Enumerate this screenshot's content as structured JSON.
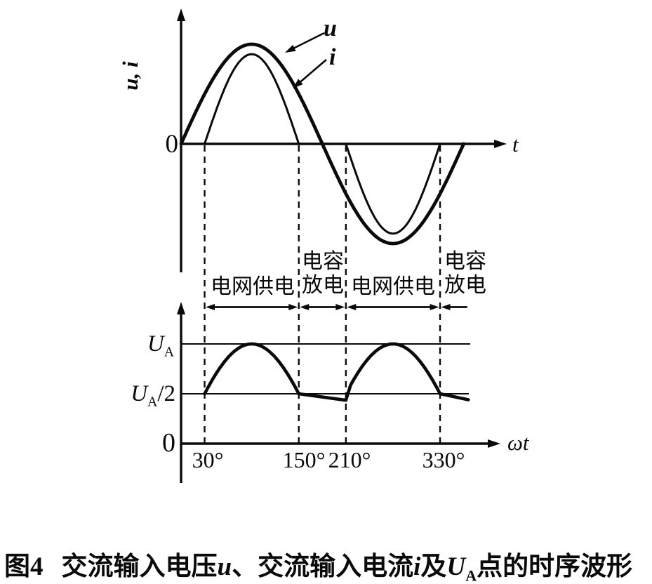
{
  "figure_caption": {
    "fig_label": "图4",
    "voltage_text": "交流输入电压",
    "voltage_symbol": "u",
    "current_text": "、交流输入电流",
    "current_symbol": "i",
    "and_text": "及",
    "node_symbol_main": "U",
    "node_symbol_sub": "A",
    "tail_text": "点的时序波形"
  },
  "top_chart": {
    "y_axis_label": "u, i",
    "origin_label": "0",
    "x_axis_label": "t",
    "curve_u_label": "u",
    "curve_i_label": "i"
  },
  "power_regions": [
    {
      "lines": [
        "电网供电"
      ],
      "from_deg": 30,
      "to_deg": 150,
      "arrow_heads": "both"
    },
    {
      "lines": [
        "电容",
        "放电"
      ],
      "from_deg": 150,
      "to_deg": 210,
      "arrow_heads": "both"
    },
    {
      "lines": [
        "电网供电"
      ],
      "from_deg": 210,
      "to_deg": 330,
      "arrow_heads": "both"
    },
    {
      "lines": [
        "电容",
        "放电"
      ],
      "from_deg": 330,
      "to_deg": 366,
      "arrow_heads": "left"
    }
  ],
  "bottom_chart": {
    "origin_label": "0",
    "x_axis_label_omega": "ω",
    "x_axis_label_t": "t",
    "ua_main": "U",
    "ua_sub": "A",
    "ua2_main": "U",
    "ua2_sub": "A",
    "ua2_suffix": "/2"
  },
  "chart_data": [
    {
      "type": "line",
      "title": "AC input voltage u and AC input current i vs time",
      "xlabel": "t",
      "ylabel": "u, i",
      "x_domain_deg": [
        0,
        360
      ],
      "guides_deg": [
        30,
        150,
        210,
        330
      ],
      "series": [
        {
          "name": "u",
          "model": "sine",
          "amplitude": 1.0,
          "range_deg": [
            0,
            360
          ]
        },
        {
          "name": "i",
          "model": "half-sine-pulses",
          "amplitude": 0.9,
          "pulses": [
            {
              "range_deg": [
                30,
                150
              ],
              "sign": 1
            },
            {
              "range_deg": [
                210,
                330
              ],
              "sign": -1
            }
          ],
          "zero_ranges_deg": [
            [
              0,
              30
            ],
            [
              150,
              210
            ],
            [
              330,
              360
            ]
          ]
        }
      ]
    },
    {
      "type": "line",
      "title": "Voltage at node A (UA) vs ωt",
      "xlabel": "ωt",
      "x_ticks_deg": [
        30,
        150,
        210,
        330
      ],
      "x_tick_labels": [
        "30°",
        "150°",
        "210°",
        "330°"
      ],
      "y_levels": [
        {
          "label": "UA",
          "value": 1.0
        },
        {
          "label": "UA/2",
          "value": 0.5
        }
      ],
      "segments": [
        {
          "model": "rectified-sine",
          "range_deg": [
            30,
            150
          ]
        },
        {
          "model": "linear-droop",
          "range_deg": [
            150,
            210
          ],
          "from_value": 0.5,
          "to_value": 0.435
        },
        {
          "model": "rectified-sine",
          "range_deg": [
            216,
            330
          ]
        },
        {
          "model": "linear-droop",
          "range_deg": [
            330,
            366
          ],
          "from_value": 0.5,
          "to_value": 0.44
        }
      ]
    }
  ]
}
